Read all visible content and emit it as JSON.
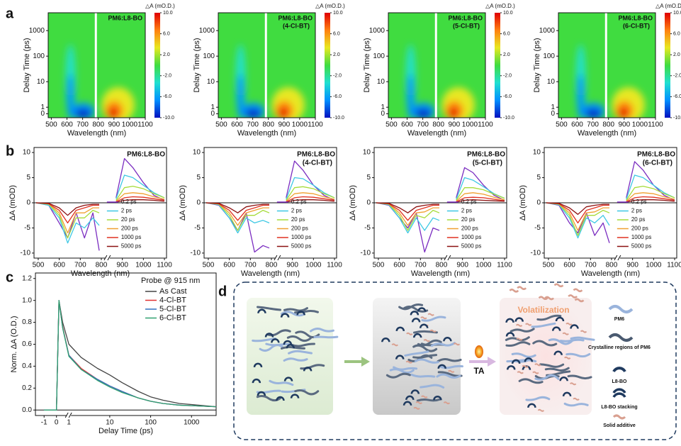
{
  "panels": [
    "a",
    "b",
    "c",
    "d"
  ],
  "chart_data": [
    {
      "type": "heatmap",
      "title": "PM6:L8-BO",
      "xlabel": "Wavelength (nm)",
      "ylabel": "Delay Time (ps)",
      "xlim": [
        480,
        1100
      ],
      "xticks": [
        500,
        600,
        700,
        800,
        900,
        1000,
        1100
      ],
      "ylim": [
        -0.6,
        5000
      ],
      "ybreak": 1,
      "yticks": [
        0,
        1,
        10,
        100,
        1000
      ],
      "zlabel": "△A (mO.D.)",
      "zlim": [
        -10,
        10
      ],
      "zticks": [
        {
          "value": 10,
          "label": "10.0"
        },
        {
          "value": 6,
          "label": "6.0"
        },
        {
          "value": 2,
          "label": "2.0"
        },
        {
          "value": -2,
          "label": "-2.0"
        },
        {
          "value": -6,
          "label": "-6.0"
        },
        {
          "value": -10,
          "label": "-10.0"
        }
      ],
      "colorscale": [
        "#0010c0",
        "#0090ff",
        "#20e0d0",
        "#40dc40",
        "#e8e820",
        "#ff8010",
        "#e00000"
      ]
    },
    {
      "type": "heatmap",
      "title": "PM6:L8-BO",
      "subtitle": "(4-Cl-BT)",
      "xlabel": "Wavelength (nm)",
      "ylabel": "Delay Time (ps)",
      "xlim": [
        480,
        1100
      ],
      "xticks": [
        500,
        600,
        700,
        800,
        900,
        1000,
        1100
      ],
      "ylim": [
        -0.6,
        5000
      ],
      "ybreak": 1,
      "yticks": [
        0,
        1,
        10,
        100,
        1000
      ],
      "zlabel": "△A (mO.D.)",
      "zlim": [
        -10,
        10
      ],
      "zticks": [
        {
          "value": 10,
          "label": "10.0"
        },
        {
          "value": 6,
          "label": "6.0"
        },
        {
          "value": 2,
          "label": "2.0"
        },
        {
          "value": -2,
          "label": "-2.0"
        },
        {
          "value": -6,
          "label": "-6.0"
        },
        {
          "value": -10,
          "label": "-10.0"
        }
      ],
      "colorscale": [
        "#0010c0",
        "#0090ff",
        "#20e0d0",
        "#40dc40",
        "#e8e820",
        "#ff8010",
        "#e00000"
      ]
    },
    {
      "type": "heatmap",
      "title": "PM6:L8-BO",
      "subtitle": "(5-Cl-BT)",
      "xlabel": "Wavelength (nm)",
      "ylabel": "Delay Time (ps)",
      "xlim": [
        480,
        1100
      ],
      "xticks": [
        500,
        600,
        700,
        800,
        900,
        1000,
        1100
      ],
      "ylim": [
        -0.6,
        5000
      ],
      "ybreak": 1,
      "yticks": [
        0,
        1,
        10,
        100,
        1000
      ],
      "zlabel": "△A (mO.D.)",
      "zlim": [
        -10,
        10
      ],
      "zticks": [
        {
          "value": 10,
          "label": "10.0"
        },
        {
          "value": 6,
          "label": "6.0"
        },
        {
          "value": 2,
          "label": "2.0"
        },
        {
          "value": -2,
          "label": "-2.0"
        },
        {
          "value": -6,
          "label": "-6.0"
        },
        {
          "value": -10,
          "label": "-10.0"
        }
      ],
      "colorscale": [
        "#0010c0",
        "#0090ff",
        "#20e0d0",
        "#40dc40",
        "#e8e820",
        "#ff8010",
        "#e00000"
      ]
    },
    {
      "type": "heatmap",
      "title": "PM6:L8-BO",
      "subtitle": "(6-Cl-BT)",
      "xlabel": "Wavelength (nm)",
      "ylabel": "Delay Time (ps)",
      "xlim": [
        480,
        1100
      ],
      "xticks": [
        500,
        600,
        700,
        800,
        900,
        1000,
        1100
      ],
      "ylim": [
        -0.6,
        5000
      ],
      "ybreak": 1,
      "yticks": [
        0,
        1,
        10,
        100,
        1000
      ],
      "zlabel": "△A (mO.D.)",
      "zlim": [
        -10,
        10
      ],
      "zticks": [
        {
          "value": 10,
          "label": "10.0"
        },
        {
          "value": 6,
          "label": "6.0"
        },
        {
          "value": 2,
          "label": "2.0"
        },
        {
          "value": -2,
          "label": "-2.0"
        },
        {
          "value": -6,
          "label": "-6.0"
        },
        {
          "value": -10,
          "label": "-10.0"
        }
      ],
      "colorscale": [
        "#0010c0",
        "#0090ff",
        "#20e0d0",
        "#40dc40",
        "#e8e820",
        "#ff8010",
        "#e00000"
      ]
    },
    {
      "type": "line",
      "title": "PM6:L8-BO",
      "xlabel": "Wavelength (nm)",
      "ylabel": "ΔA (mOD)",
      "xlim": [
        480,
        1110
      ],
      "xticks": [
        500,
        600,
        700,
        800,
        900,
        1000,
        1100
      ],
      "ylim": [
        -11,
        11
      ],
      "yticks": [
        -10,
        -5,
        0,
        5,
        10
      ],
      "zero_line": true,
      "legend": "lower-right",
      "x": [
        490,
        550,
        600,
        640,
        680,
        720,
        760,
        790,
        830,
        870,
        910,
        950,
        1000,
        1050,
        1100
      ],
      "series": [
        {
          "name": "0.2 ps",
          "color": "#7a2cc0",
          "values": [
            0,
            -0.5,
            -4,
            -7,
            -2,
            -7,
            -2,
            -9.5,
            null,
            1,
            8.8,
            7,
            4,
            1.5,
            0.5
          ]
        },
        {
          "name": "2 ps",
          "color": "#3ec8e4",
          "values": [
            0,
            -0.5,
            -3,
            -8,
            -4,
            -5,
            -3,
            -4.5,
            null,
            0.8,
            5.5,
            5,
            3.5,
            2,
            1
          ]
        },
        {
          "name": "20 ps",
          "color": "#a6dc3a",
          "values": [
            0,
            -0.3,
            -2.5,
            -7,
            -3,
            -3,
            -1.5,
            -2,
            null,
            0.5,
            3,
            3.3,
            2.8,
            1.8,
            1
          ]
        },
        {
          "name": "200 ps",
          "color": "#f0a030",
          "values": [
            0,
            -0.2,
            -2,
            -6,
            -2,
            -2,
            -1,
            -1,
            null,
            0.3,
            1.8,
            2,
            1.8,
            1.2,
            0.7
          ]
        },
        {
          "name": "1000 ps",
          "color": "#e03020",
          "values": [
            0,
            -0.2,
            -1.5,
            -4,
            -1.5,
            -1,
            -0.5,
            -0.5,
            null,
            0.2,
            1,
            1.2,
            1.1,
            0.8,
            0.5
          ]
        },
        {
          "name": "5000 ps",
          "color": "#8b1010",
          "values": [
            0,
            -0.1,
            -1,
            -2.5,
            -1,
            -0.5,
            -0.3,
            -0.3,
            null,
            0.1,
            0.5,
            0.6,
            0.6,
            0.5,
            0.3
          ]
        }
      ]
    },
    {
      "type": "line",
      "title": "PM6:L8-BO",
      "subtitle": "(4-Cl-BT)",
      "xlabel": "Wavelength (nm)",
      "ylabel": "ΔA (mOD)",
      "xlim": [
        480,
        1110
      ],
      "xticks": [
        500,
        600,
        700,
        800,
        900,
        1000,
        1100
      ],
      "ylim": [
        -11,
        11
      ],
      "yticks": [
        -10,
        -5,
        0,
        5,
        10
      ],
      "zero_line": true,
      "legend": "lower-right",
      "x": [
        490,
        550,
        600,
        640,
        680,
        720,
        760,
        790,
        830,
        870,
        910,
        950,
        1000,
        1050,
        1100
      ],
      "series": [
        {
          "name": "0.2 ps",
          "color": "#7a2cc0",
          "values": [
            0,
            -0.5,
            -3,
            -5.5,
            -2,
            -9.8,
            -8.5,
            -9,
            null,
            1,
            8.3,
            6.5,
            3.5,
            1.5,
            0.5
          ]
        },
        {
          "name": "2 ps",
          "color": "#3ec8e4",
          "values": [
            0,
            -0.4,
            -3,
            -6,
            -3,
            -4,
            -3.5,
            -4,
            null,
            0.7,
            5,
            4.8,
            3.5,
            2,
            1
          ]
        },
        {
          "name": "20 ps",
          "color": "#a6dc3a",
          "values": [
            0,
            -0.3,
            -2.5,
            -5.5,
            -2.5,
            -2.5,
            -1.5,
            -2,
            null,
            0.5,
            3,
            3.2,
            2.8,
            1.8,
            1
          ]
        },
        {
          "name": "200 ps",
          "color": "#f0a030",
          "values": [
            0,
            -0.2,
            -2,
            -4.5,
            -2,
            -1.5,
            -1,
            -1,
            null,
            0.3,
            1.8,
            2,
            1.8,
            1.2,
            0.7
          ]
        },
        {
          "name": "1000 ps",
          "color": "#e03020",
          "values": [
            0,
            -0.2,
            -1.5,
            -3.5,
            -1.5,
            -1,
            -0.5,
            -0.5,
            null,
            0.2,
            1,
            1.2,
            1.1,
            0.8,
            0.5
          ]
        },
        {
          "name": "5000 ps",
          "color": "#8b1010",
          "values": [
            0,
            -0.1,
            -1,
            -2,
            -0.8,
            -0.5,
            -0.3,
            -0.3,
            null,
            0.1,
            0.5,
            0.6,
            0.6,
            0.5,
            0.3
          ]
        }
      ]
    },
    {
      "type": "line",
      "title": "PM6:L8-BO",
      "subtitle": "(5-Cl-BT)",
      "xlabel": "Wavelength (nm)",
      "ylabel": "ΔA (mOD)",
      "xlim": [
        480,
        1110
      ],
      "xticks": [
        500,
        600,
        700,
        800,
        900,
        1000,
        1100
      ],
      "ylim": [
        -11,
        11
      ],
      "yticks": [
        -10,
        -5,
        0,
        5,
        10
      ],
      "zero_line": true,
      "legend": "lower-right",
      "x": [
        490,
        550,
        600,
        640,
        680,
        720,
        760,
        790,
        830,
        870,
        910,
        950,
        1000,
        1050,
        1100
      ],
      "series": [
        {
          "name": "0.2 ps",
          "color": "#7a2cc0",
          "values": [
            0,
            -0.5,
            -3,
            -5,
            -2,
            -9.8,
            -5,
            -5.5,
            null,
            1,
            7,
            6,
            3.5,
            1.5,
            0.5
          ]
        },
        {
          "name": "2 ps",
          "color": "#3ec8e4",
          "values": [
            0,
            -0.4,
            -3,
            -6,
            -3,
            -5.5,
            -3,
            -3.5,
            null,
            0.7,
            5,
            4.5,
            3.2,
            1.8,
            0.9
          ]
        },
        {
          "name": "20 ps",
          "color": "#a6dc3a",
          "values": [
            0,
            -0.3,
            -2.5,
            -5.5,
            -2.5,
            -3,
            -1.5,
            -2,
            null,
            0.5,
            3,
            3,
            2.6,
            1.7,
            0.9
          ]
        },
        {
          "name": "200 ps",
          "color": "#f0a030",
          "values": [
            0,
            -0.2,
            -2,
            -4.5,
            -2,
            -1.8,
            -1,
            -1,
            null,
            0.3,
            1.8,
            2,
            1.7,
            1.1,
            0.6
          ]
        },
        {
          "name": "1000 ps",
          "color": "#e03020",
          "values": [
            0,
            -0.2,
            -1.5,
            -3.5,
            -1.5,
            -1,
            -0.5,
            -0.5,
            null,
            0.2,
            1,
            1.1,
            1,
            0.7,
            0.4
          ]
        },
        {
          "name": "5000 ps",
          "color": "#8b1010",
          "values": [
            0,
            -0.1,
            -1,
            -2,
            -0.8,
            -0.5,
            -0.3,
            -0.3,
            null,
            0.1,
            0.5,
            0.6,
            0.5,
            0.4,
            0.3
          ]
        }
      ]
    },
    {
      "type": "line",
      "title": "PM6:L8-BO",
      "subtitle": "(6-Cl-BT)",
      "xlabel": "Wavelength (nm)",
      "ylabel": "ΔA (mOD)",
      "xlim": [
        480,
        1110
      ],
      "xticks": [
        500,
        600,
        700,
        800,
        900,
        1000,
        1100
      ],
      "ylim": [
        -11,
        11
      ],
      "yticks": [
        -10,
        -5,
        0,
        5,
        10
      ],
      "zero_line": true,
      "legend": "lower-right",
      "x": [
        490,
        550,
        600,
        640,
        680,
        720,
        760,
        790,
        830,
        870,
        910,
        950,
        1000,
        1050,
        1100
      ],
      "series": [
        {
          "name": "0.2 ps",
          "color": "#7a2cc0",
          "values": [
            0,
            -0.5,
            -4,
            -6,
            -2,
            -6.5,
            -4,
            -8,
            null,
            1,
            8.2,
            6.5,
            3.5,
            1.5,
            0.5
          ]
        },
        {
          "name": "2 ps",
          "color": "#3ec8e4",
          "values": [
            0,
            -0.4,
            -3,
            -7,
            -3,
            -4,
            -2.5,
            -4.5,
            null,
            0.7,
            5.5,
            5,
            3.5,
            2,
            1
          ]
        },
        {
          "name": "20 ps",
          "color": "#a6dc3a",
          "values": [
            0,
            -0.3,
            -2.5,
            -6.5,
            -2.5,
            -2.5,
            -1.5,
            -2,
            null,
            0.5,
            3,
            3.3,
            2.8,
            1.8,
            1
          ]
        },
        {
          "name": "200 ps",
          "color": "#f0a030",
          "values": [
            0,
            -0.2,
            -2,
            -5.5,
            -2,
            -1.8,
            -1,
            -1,
            null,
            0.3,
            1.8,
            2,
            1.8,
            1.2,
            0.7
          ]
        },
        {
          "name": "1000 ps",
          "color": "#e03020",
          "values": [
            0,
            -0.2,
            -1.5,
            -4,
            -1.5,
            -1,
            -0.5,
            -0.5,
            null,
            0.2,
            1,
            1.2,
            1.1,
            0.8,
            0.5
          ]
        },
        {
          "name": "5000 ps",
          "color": "#8b1010",
          "values": [
            0,
            -0.1,
            -1,
            -2.3,
            -0.8,
            -0.5,
            -0.3,
            -0.3,
            null,
            0.1,
            0.5,
            0.6,
            0.6,
            0.5,
            0.3
          ]
        }
      ]
    },
    {
      "type": "line",
      "xlabel": "Delay Time (ps)",
      "ylabel": "Norm. ΔA (O.D.)",
      "xlim": [
        -1.7,
        4000
      ],
      "xbreak": 1,
      "xticks": [
        -1,
        0,
        1,
        10,
        100,
        1000
      ],
      "ylim": [
        -0.05,
        1.25
      ],
      "yticks": [
        {
          "value": 0,
          "label": "0.0"
        },
        {
          "value": 0.2,
          "label": "0.2"
        },
        {
          "value": 0.4,
          "label": "0.4"
        },
        {
          "value": 0.6,
          "label": "0.6"
        },
        {
          "value": 0.8,
          "label": "0.8"
        },
        {
          "value": 1,
          "label": "1.0"
        },
        {
          "value": 1.2,
          "label": "1.2"
        }
      ],
      "zero_line": true,
      "legend": "upper-right",
      "legend_title": "Probe @ 915 nm",
      "x": [
        -1,
        0,
        0.2,
        0.5,
        1,
        2,
        5,
        10,
        20,
        50,
        100,
        200,
        500,
        1000,
        4000
      ],
      "series": [
        {
          "name": "As Cast",
          "color": "#444444",
          "values": [
            0,
            0,
            1,
            0.8,
            0.6,
            0.48,
            0.38,
            0.32,
            0.25,
            0.17,
            0.12,
            0.09,
            0.06,
            0.05,
            0.03
          ]
        },
        {
          "name": "4-Cl-BT",
          "color": "#e03030",
          "values": [
            0,
            0,
            1,
            0.76,
            0.5,
            0.38,
            0.28,
            0.22,
            0.17,
            0.11,
            0.08,
            0.06,
            0.045,
            0.04,
            0.03
          ]
        },
        {
          "name": "5-Cl-BT",
          "color": "#3070c0",
          "values": [
            0,
            0,
            1,
            0.75,
            0.5,
            0.37,
            0.28,
            0.22,
            0.17,
            0.11,
            0.08,
            0.06,
            0.045,
            0.04,
            0.03
          ]
        },
        {
          "name": "6-Cl-BT",
          "color": "#30a070",
          "values": [
            0,
            0,
            1,
            0.75,
            0.49,
            0.37,
            0.27,
            0.21,
            0.16,
            0.11,
            0.08,
            0.06,
            0.044,
            0.04,
            0.03
          ]
        }
      ]
    }
  ],
  "diagram": {
    "volatilization": "Volatilization",
    "ta": "TA",
    "legend": [
      "PM6",
      "Crystalline regions of PM6",
      "L8-BO",
      "L8-BO stacking",
      "Solid additive"
    ]
  }
}
